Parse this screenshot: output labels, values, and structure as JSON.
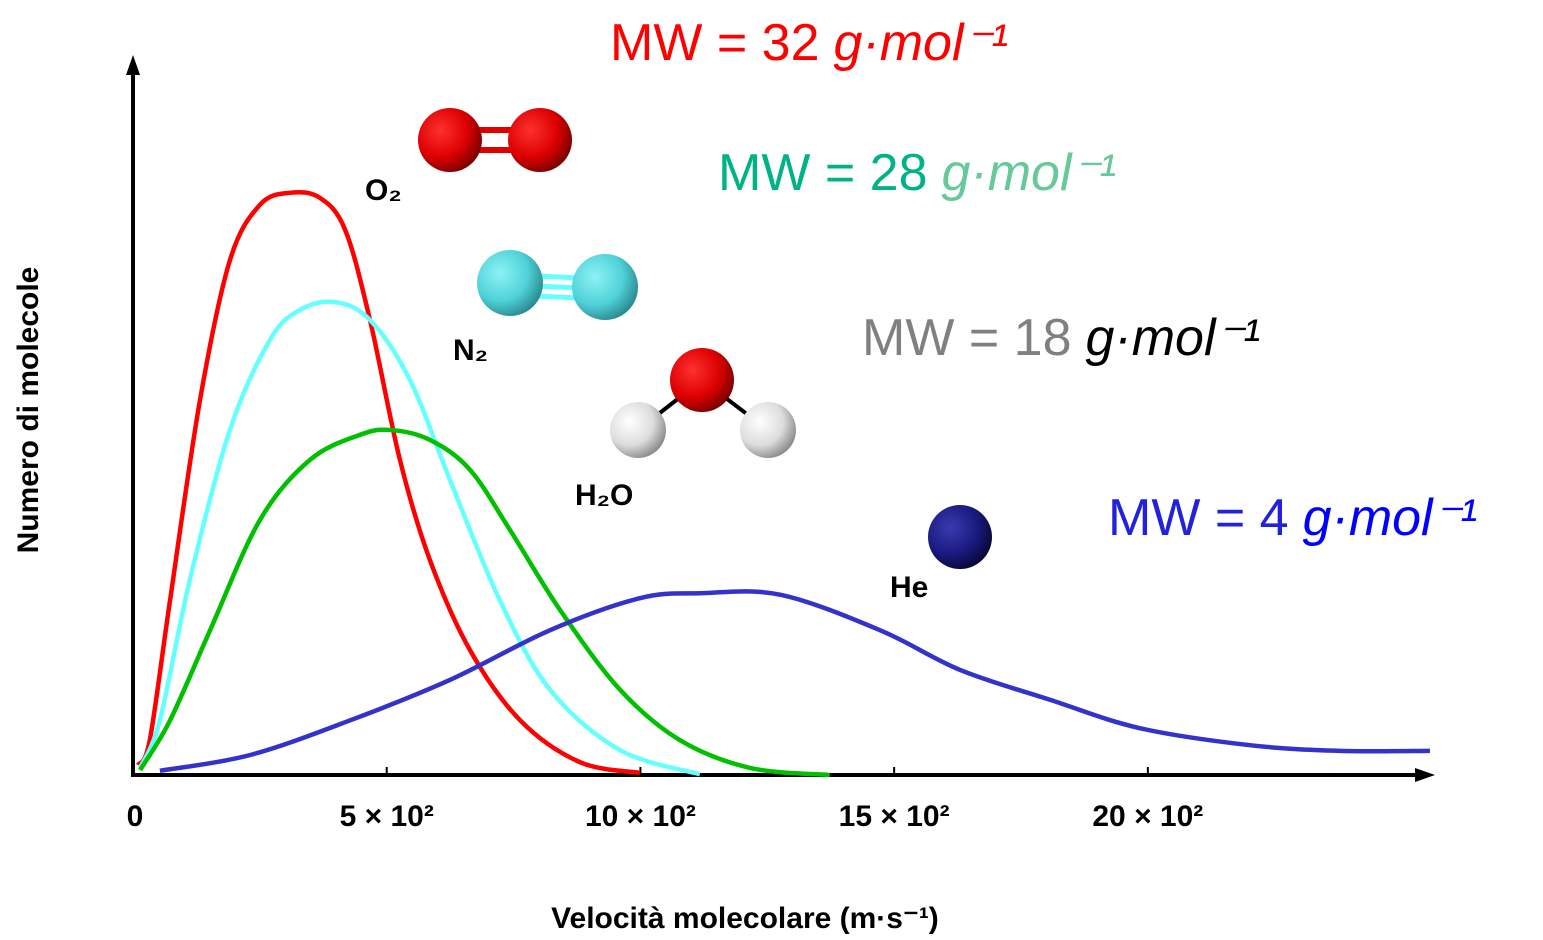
{
  "chart_data": {
    "type": "line",
    "x_label": "Velocità molecolare (m·s⁻¹)",
    "y_label": "Numero di molecole",
    "xlim": [
      0,
      2560
    ],
    "ylim": [
      0,
      100
    ],
    "xticks": [
      0,
      {
        "value": 500,
        "label": "5 × 10²"
      },
      {
        "value": 1000,
        "label": "10 × 10²"
      },
      {
        "value": 1500,
        "label": "15 × 10²"
      },
      {
        "value": 2000,
        "label": "20 × 10²"
      }
    ],
    "series": [
      {
        "name": "O₂",
        "color": "#ff0000",
        "mw": "MW = 32",
        "unit": "g·mol⁻¹",
        "mw_color": "#ff0000",
        "unit_color": "#ff0000",
        "x": [
          10,
          33,
          73,
          132,
          191,
          250,
          309,
          368,
          418,
          467,
          526,
          585,
          664,
          763,
          881,
          999
        ],
        "values": [
          1.4,
          4.9,
          24.6,
          52.8,
          72.5,
          80.3,
          82.0,
          81.3,
          76.8,
          64.1,
          44.4,
          30.3,
          17.6,
          7.7,
          1.8,
          0.3
        ]
      },
      {
        "name": "N₂",
        "color": "#66ffff",
        "mw": "MW = 28",
        "unit": "g·mol⁻¹",
        "mw_color": "#00b386",
        "unit_color": "#66c99a",
        "x": [
          14,
          53,
          112,
          191,
          270,
          329,
          398,
          467,
          546,
          625,
          723,
          822,
          960,
          1117
        ],
        "values": [
          1.0,
          7.7,
          27.5,
          48.6,
          61.3,
          65.5,
          66.6,
          64.1,
          55.6,
          41.5,
          24.6,
          12.0,
          3.5,
          0.1
        ]
      },
      {
        "name": "H₂O",
        "color": "#00c000",
        "mw": "MW = 18",
        "unit": "g·mol⁻¹",
        "mw_color": "#808080",
        "unit_color": "#000000",
        "x": [
          14,
          73,
          152,
          250,
          349,
          447,
          507,
          585,
          664,
          743,
          842,
          960,
          1078,
          1216,
          1373
        ],
        "values": [
          0.7,
          7.7,
          20.4,
          35.9,
          44.4,
          47.9,
          48.6,
          47.2,
          43.0,
          34.5,
          23.2,
          12.0,
          4.9,
          1.0,
          0
        ]
      },
      {
        "name": "He",
        "color": "#3333cc",
        "mw": "MW = 4",
        "unit": "g·mol⁻¹",
        "mw_color": "#2222dd",
        "unit_color": "#0000ff",
        "x": [
          53,
          230,
          428,
          625,
          822,
          999,
          1117,
          1275,
          1472,
          1630,
          1807,
          1984,
          2201,
          2379,
          2556
        ],
        "values": [
          0.6,
          2.8,
          7.7,
          13.4,
          20.4,
          24.9,
          25.6,
          25.4,
          20.4,
          14.8,
          10.6,
          6.6,
          4.2,
          3.4,
          3.4
        ]
      }
    ]
  }
}
